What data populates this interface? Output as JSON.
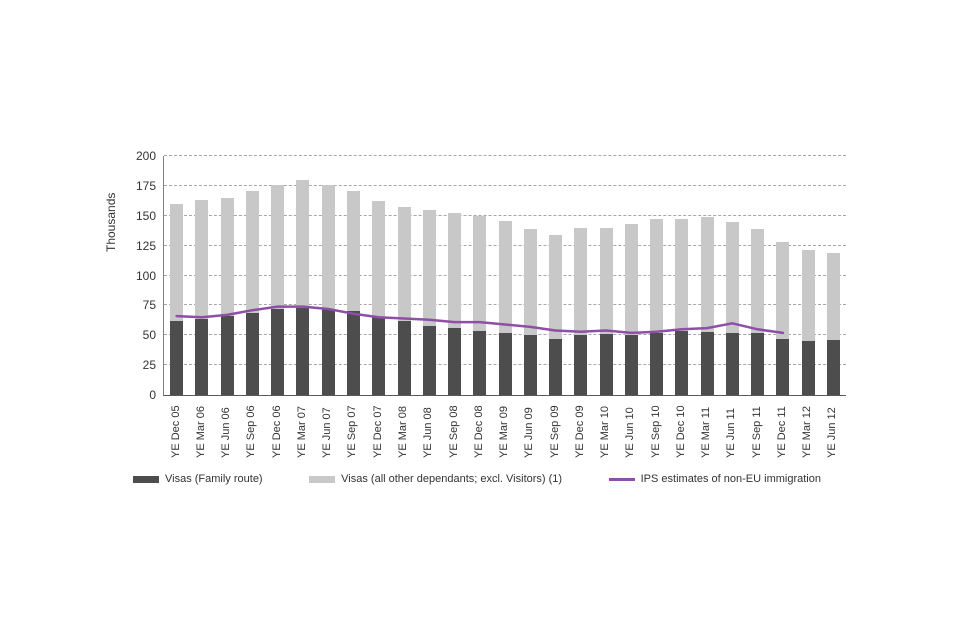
{
  "chart_data": {
    "type": "bar",
    "variant": "stacked-bars-with-line-overlay",
    "title": "",
    "xlabel": "",
    "ylabel": "Thousands",
    "ylim": [
      0,
      200
    ],
    "yticks": [
      0,
      25,
      50,
      75,
      100,
      125,
      150,
      175,
      200
    ],
    "grid": "horizontal dashed",
    "legend_position": "bottom",
    "categories": [
      "YE Dec 05",
      "YE Mar 06",
      "YE Jun 06",
      "YE Sep 06",
      "YE Dec 06",
      "YE Mar 07",
      "YE Jun 07",
      "YE Sep 07",
      "YE Dec 07",
      "YE Mar 08",
      "YE Jun 08",
      "YE Sep 08",
      "YE Dec 08",
      "YE Mar 09",
      "YE Jun 09",
      "YE Sep 09",
      "YE Dec 09",
      "YE Mar 10",
      "YE Jun 10",
      "YE Sep 10",
      "YE Dec 10",
      "YE Mar 11",
      "YE Jun 11",
      "YE Sep 11",
      "YE Dec 11",
      "YE Mar 12",
      "YE Jun 12"
    ],
    "series": [
      {
        "name": "Visas (Family route)",
        "type": "bar",
        "color": "#4d4d4d",
        "values": [
          62,
          64,
          66,
          69,
          72,
          73,
          72,
          70,
          65,
          62,
          58,
          56,
          54,
          52,
          50,
          47,
          50,
          51,
          50,
          52,
          54,
          53,
          52,
          52,
          47,
          45,
          46
        ]
      },
      {
        "name": "Visas (all other dependants; excl. Visitors) (1)",
        "type": "bar",
        "color": "#c8c8c8",
        "values": [
          98,
          99,
          99,
          102,
          104,
          107,
          104,
          101,
          97,
          95,
          97,
          96,
          96,
          94,
          89,
          87,
          90,
          89,
          93,
          95,
          93,
          96,
          93,
          87,
          81,
          76,
          73
        ]
      },
      {
        "name": "IPS estimates of non-EU immigration",
        "type": "line",
        "color": "#8e4fa6",
        "values": [
          66,
          65,
          67,
          71,
          74,
          74,
          72,
          68,
          65,
          64,
          63,
          61,
          61,
          59,
          57,
          54,
          53,
          54,
          52,
          53,
          55,
          56,
          60,
          55,
          52,
          null,
          null
        ]
      }
    ]
  }
}
